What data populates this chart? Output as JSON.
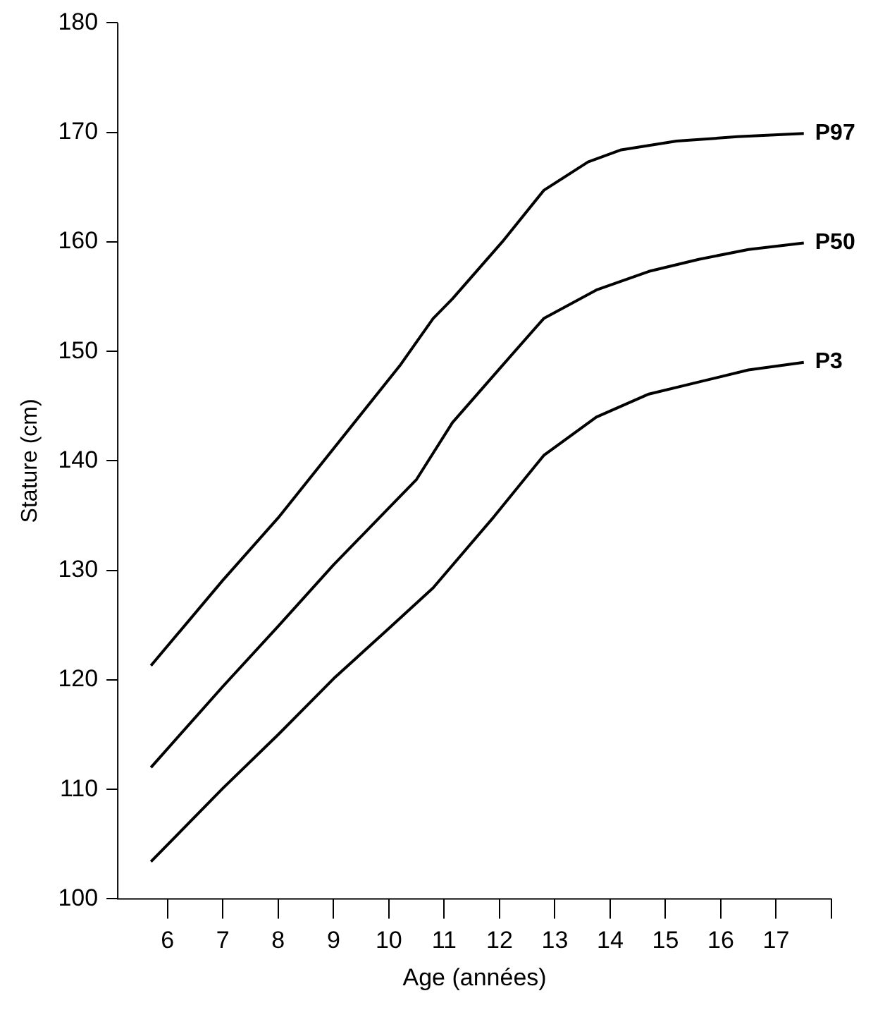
{
  "chart_data": {
    "type": "line",
    "xlabel": "Age (années)",
    "ylabel": "Stature (cm)",
    "xlim": [
      5.1,
      18
    ],
    "xticks": [
      6,
      7,
      8,
      9,
      10,
      11,
      12,
      13,
      14,
      15,
      16,
      17,
      {
        "value": 18,
        "label": null
      }
    ],
    "ylim": [
      100,
      180
    ],
    "yticks": [
      100,
      110,
      120,
      130,
      140,
      150,
      160,
      170,
      180
    ],
    "grid": false,
    "legend": false,
    "marker": "none",
    "line_style": "solid",
    "series": [
      {
        "name": "P97",
        "color": "#000000",
        "x": [
          5.7,
          7,
          8,
          10.2,
          10.8,
          11.15,
          12.05,
          12.8,
          13.6,
          14.2,
          15.2,
          16.3,
          17.5
        ],
        "values": [
          121.3,
          129.1,
          134.8,
          148.7,
          153.0,
          154.8,
          160.0,
          164.7,
          167.3,
          168.4,
          169.2,
          169.6,
          169.9
        ]
      },
      {
        "name": "P50",
        "color": "#000000",
        "x": [
          5.7,
          7,
          8,
          9,
          10,
          10.5,
          11.15,
          12.05,
          12.8,
          13.75,
          14.7,
          15.6,
          16.5,
          17.5
        ],
        "values": [
          112.0,
          119.4,
          124.9,
          130.5,
          135.7,
          138.3,
          143.5,
          148.7,
          153.0,
          155.6,
          157.3,
          158.4,
          159.3,
          159.9
        ]
      },
      {
        "name": "P3",
        "color": "#000000",
        "x": [
          5.7,
          7,
          8,
          9,
          10,
          10.8,
          11.9,
          12.8,
          13.75,
          14.7,
          15.6,
          16.5,
          17.5
        ],
        "values": [
          103.4,
          110.1,
          115.0,
          120.1,
          124.7,
          128.4,
          134.9,
          140.5,
          144.0,
          146.1,
          147.2,
          148.3,
          149.0
        ]
      }
    ]
  }
}
